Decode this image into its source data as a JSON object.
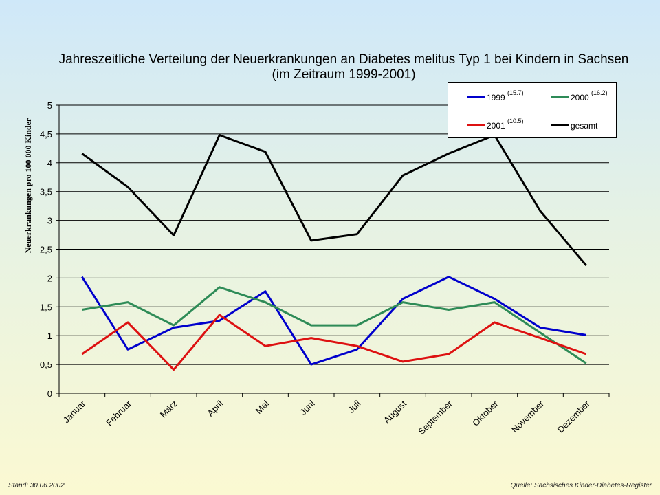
{
  "chart_data": {
    "type": "line",
    "title": "Jahreszeitliche Verteilung der Neuerkrankungen an Diabetes melitus Typ 1 bei Kindern in Sachsen",
    "subtitle": "(im Zeitraum 1999-2001)",
    "ylabel": "Neuerkrankungen pro 100 000 Kinder",
    "xlabel": "",
    "ylim": [
      0,
      5
    ],
    "yticks": [
      0,
      0.5,
      1,
      1.5,
      2,
      2.5,
      3,
      3.5,
      4,
      4.5,
      5
    ],
    "ytick_labels": [
      "0",
      "0,5",
      "1",
      "1,5",
      "2",
      "2,5",
      "3",
      "3,5",
      "4",
      "4,5",
      "5"
    ],
    "grid": "horizontal",
    "legend_position": "top-right",
    "categories": [
      "Januar",
      "Februar",
      "März",
      "April",
      "Mai",
      "Juni",
      "Juli",
      "August",
      "September",
      "Oktober",
      "November",
      "Dezember"
    ],
    "series": [
      {
        "name": "1999",
        "note": "(15.7)",
        "color": "#0000cc",
        "values": [
          2.02,
          0.76,
          1.14,
          1.26,
          1.77,
          0.5,
          0.76,
          1.64,
          2.02,
          1.64,
          1.14,
          1.01
        ]
      },
      {
        "name": "2000",
        "note": "(16.2)",
        "color": "#2e8b57",
        "values": [
          1.45,
          1.58,
          1.18,
          1.84,
          1.58,
          1.18,
          1.18,
          1.58,
          1.45,
          1.58,
          1.05,
          0.52
        ]
      },
      {
        "name": "2001",
        "note": "(10.5)",
        "color": "#dd1111",
        "values": [
          0.68,
          1.23,
          0.41,
          1.36,
          0.82,
          0.96,
          0.82,
          0.55,
          0.68,
          1.23,
          0.96,
          0.68
        ]
      },
      {
        "name": "gesamt",
        "note": "",
        "color": "#000000",
        "values": [
          4.16,
          3.58,
          2.74,
          4.48,
          4.19,
          2.65,
          2.76,
          3.78,
          4.16,
          4.48,
          3.16,
          2.22
        ]
      }
    ]
  },
  "footer": {
    "stand": "Stand: 30.06.2002",
    "quelle": "Quelle: Sächsisches Kinder-Diabetes-Register"
  }
}
